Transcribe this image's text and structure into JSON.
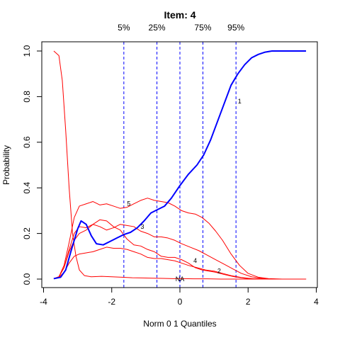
{
  "chart_data": {
    "type": "line",
    "title": "Item:  4",
    "xlabel": "Norm 0 1 Quantiles",
    "ylabel": "Probability",
    "xlim": [
      -4,
      4
    ],
    "ylim": [
      0,
      1
    ],
    "xticks": [
      -4,
      -2,
      0,
      2,
      4
    ],
    "xtick_labels": [
      "-4",
      "-2",
      "0",
      "2",
      "4"
    ],
    "yticks": [
      0.0,
      0.2,
      0.4,
      0.6,
      0.8,
      1.0
    ],
    "ytick_labels": [
      "0.0",
      "0.2",
      "0.4",
      "0.6",
      "0.8",
      "1.0"
    ],
    "grid": false,
    "quantile_lines": [
      {
        "label": "5%",
        "x": -1.645
      },
      {
        "label": "25%",
        "x": -0.674
      },
      {
        "label": "",
        "x": 0.0
      },
      {
        "label": "75%",
        "x": 0.674
      },
      {
        "label": "95%",
        "x": 1.645
      }
    ],
    "colors": {
      "key": "#0000ff",
      "distractor": "#ff0000",
      "quantile": "#0000ff"
    },
    "series": [
      {
        "name": "1",
        "key": true,
        "label_at": [
          1.75,
          0.78
        ],
        "x": [
          -3.7,
          -3.5,
          -3.35,
          -3.2,
          -3.0,
          -2.9,
          -2.75,
          -2.6,
          -2.45,
          -2.25,
          -2.05,
          -1.85,
          -1.65,
          -1.45,
          -1.25,
          -1.05,
          -0.85,
          -0.65,
          -0.45,
          -0.25,
          0.0,
          0.25,
          0.5,
          0.7,
          0.9,
          1.1,
          1.3,
          1.5,
          1.7,
          1.9,
          2.1,
          2.3,
          2.5,
          2.7,
          3.0,
          3.3,
          3.7
        ],
        "y": [
          0.002,
          0.008,
          0.04,
          0.12,
          0.22,
          0.255,
          0.24,
          0.19,
          0.155,
          0.15,
          0.165,
          0.18,
          0.195,
          0.205,
          0.225,
          0.255,
          0.29,
          0.305,
          0.32,
          0.355,
          0.41,
          0.46,
          0.5,
          0.545,
          0.61,
          0.69,
          0.77,
          0.85,
          0.9,
          0.94,
          0.97,
          0.985,
          0.995,
          1.0,
          1.0,
          1.0,
          1.0
        ]
      },
      {
        "name": "5",
        "key": false,
        "label_at": [
          -1.5,
          0.33
        ],
        "x": [
          -3.7,
          -3.55,
          -3.4,
          -3.25,
          -3.1,
          -2.95,
          -2.75,
          -2.55,
          -2.35,
          -2.15,
          -1.95,
          -1.75,
          -1.55,
          -1.35,
          -1.15,
          -0.95,
          -0.75,
          -0.55,
          -0.35,
          -0.15,
          0.05,
          0.25,
          0.45,
          0.65,
          0.85,
          1.05,
          1.25,
          1.5,
          1.75,
          2.0,
          2.3,
          2.6,
          3.0,
          3.7
        ],
        "y": [
          0.002,
          0.01,
          0.06,
          0.16,
          0.27,
          0.32,
          0.33,
          0.34,
          0.325,
          0.33,
          0.32,
          0.31,
          0.315,
          0.33,
          0.345,
          0.355,
          0.345,
          0.34,
          0.335,
          0.32,
          0.3,
          0.29,
          0.285,
          0.27,
          0.245,
          0.21,
          0.17,
          0.11,
          0.06,
          0.025,
          0.008,
          0.002,
          0.0,
          0.0
        ]
      },
      {
        "name": "3",
        "key": false,
        "label_at": [
          -1.1,
          0.23
        ],
        "x": [
          -3.7,
          -3.55,
          -3.4,
          -3.25,
          -3.1,
          -2.95,
          -2.75,
          -2.55,
          -2.35,
          -2.15,
          -1.95,
          -1.75,
          -1.55,
          -1.35,
          -1.15,
          -0.95,
          -0.75,
          -0.55,
          -0.35,
          -0.15,
          0.05,
          0.3,
          0.55,
          0.8,
          1.05,
          1.3,
          1.55,
          1.8,
          2.1,
          2.4,
          2.8,
          3.7
        ],
        "y": [
          0.002,
          0.01,
          0.05,
          0.12,
          0.17,
          0.2,
          0.215,
          0.24,
          0.23,
          0.215,
          0.225,
          0.24,
          0.235,
          0.23,
          0.21,
          0.2,
          0.185,
          0.185,
          0.18,
          0.17,
          0.155,
          0.14,
          0.125,
          0.105,
          0.085,
          0.065,
          0.045,
          0.025,
          0.01,
          0.003,
          0.0,
          0.0
        ]
      },
      {
        "name": "4",
        "key": false,
        "label_at": [
          0.45,
          0.08
        ],
        "x": [
          -3.7,
          -3.55,
          -3.4,
          -3.25,
          -3.1,
          -2.95,
          -2.75,
          -2.55,
          -2.35,
          -2.15,
          -1.95,
          -1.75,
          -1.55,
          -1.35,
          -1.15,
          -0.95,
          -0.75,
          -0.55,
          -0.35,
          -0.15,
          0.05,
          0.25,
          0.45,
          0.65,
          0.85,
          1.05,
          1.3,
          1.6,
          1.9,
          2.2,
          2.6,
          3.7
        ],
        "y": [
          0.002,
          0.01,
          0.05,
          0.13,
          0.2,
          0.23,
          0.225,
          0.24,
          0.26,
          0.255,
          0.23,
          0.215,
          0.175,
          0.15,
          0.145,
          0.13,
          0.12,
          0.1,
          0.095,
          0.095,
          0.085,
          0.07,
          0.05,
          0.04,
          0.035,
          0.03,
          0.02,
          0.01,
          0.004,
          0.001,
          0.0,
          0.0
        ]
      },
      {
        "name": "2",
        "key": false,
        "label_at": [
          1.15,
          0.035
        ],
        "x": [
          -3.7,
          -3.55,
          -3.4,
          -3.25,
          -3.1,
          -2.95,
          -2.75,
          -2.55,
          -2.35,
          -2.15,
          -1.95,
          -1.75,
          -1.55,
          -1.35,
          -1.15,
          -0.95,
          -0.75,
          -0.55,
          -0.35,
          -0.15,
          0.05,
          0.25,
          0.5,
          0.75,
          1.0,
          1.25,
          1.5,
          1.8,
          2.1,
          2.5,
          3.0,
          3.7
        ],
        "y": [
          0.002,
          0.008,
          0.03,
          0.07,
          0.1,
          0.11,
          0.115,
          0.12,
          0.13,
          0.14,
          0.135,
          0.135,
          0.13,
          0.12,
          0.11,
          0.095,
          0.09,
          0.09,
          0.085,
          0.08,
          0.07,
          0.06,
          0.05,
          0.04,
          0.035,
          0.025,
          0.015,
          0.007,
          0.002,
          0.0,
          0.0,
          0.0
        ]
      },
      {
        "name": "NA",
        "key": false,
        "label_at": [
          0.0,
          0.0
        ],
        "x": [
          -3.7,
          -3.55,
          -3.45,
          -3.35,
          -3.25,
          -3.15,
          -3.05,
          -2.95,
          -2.8,
          -2.6,
          -2.3,
          -2.0,
          -1.7,
          -1.4,
          -1.1,
          -0.8,
          -0.5,
          -0.2,
          0.1,
          0.4,
          0.8,
          1.2,
          1.6,
          2.0,
          2.5,
          3.0,
          3.7
        ],
        "y": [
          1.0,
          0.98,
          0.87,
          0.65,
          0.4,
          0.2,
          0.1,
          0.04,
          0.015,
          0.01,
          0.012,
          0.01,
          0.008,
          0.006,
          0.005,
          0.004,
          0.003,
          0.002,
          0.002,
          0.001,
          0.001,
          0.0,
          0.0,
          0.0,
          0.0,
          0.0,
          0.0
        ]
      }
    ]
  }
}
